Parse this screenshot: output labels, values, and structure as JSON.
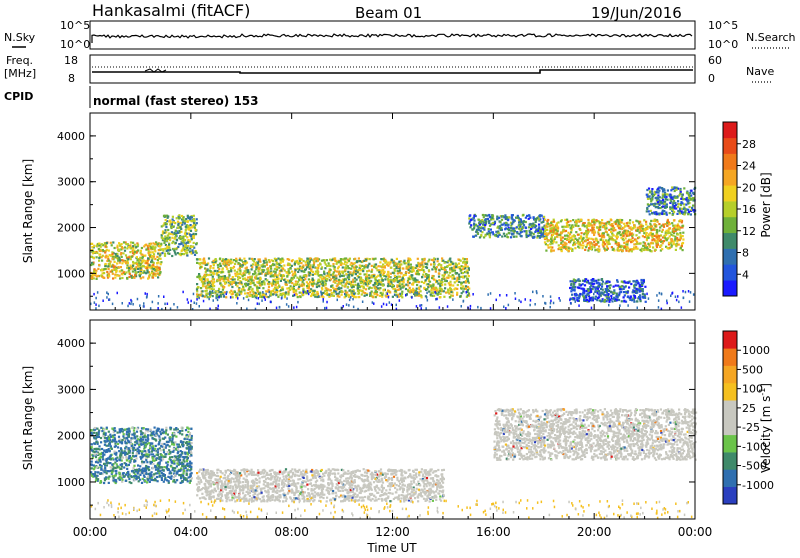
{
  "header": {
    "station": "Hankasalmi (fitACF)",
    "beam": "Beam 01",
    "date": "19/Jun/2016"
  },
  "noise_panel": {
    "left_label": "N.Sky",
    "right_label": "N.Search",
    "left_ticks": [
      "10^5",
      "10^0"
    ],
    "right_ticks": [
      "10^5",
      "10^0"
    ]
  },
  "freq_panel": {
    "left_label_1": "Freq.",
    "left_label_2": "[MHz]",
    "right_label": "Nave",
    "left_ticks": [
      "18",
      "8"
    ],
    "right_ticks": [
      "60",
      "0"
    ]
  },
  "cpid_panel": {
    "label": "CPID",
    "text": "normal (fast stereo) 153"
  },
  "chart_data": [
    {
      "type": "heatmap",
      "quantity": "Power",
      "ylabel": "Slant Range [km]",
      "ylim": [
        200,
        4500
      ],
      "yticks": [
        "1000",
        "2000",
        "3000",
        "4000"
      ],
      "xlim_hours": [
        0,
        24
      ],
      "colorbar": {
        "label": "Power [dB]",
        "ticks": [
          "4",
          "8",
          "12",
          "16",
          "20",
          "24",
          "28"
        ],
        "colors": [
          "#1a1aff",
          "#2255dd",
          "#2f6fb0",
          "#3f8a6a",
          "#6fb13a",
          "#b6cf2a",
          "#f0d020",
          "#f5a623",
          "#f07a1a",
          "#e94b18",
          "#dd1a1a"
        ]
      },
      "regions": [
        {
          "t0": 0.0,
          "t1": 2.8,
          "r0": 900,
          "r1": 1700,
          "level": 0.6
        },
        {
          "t0": 2.8,
          "t1": 4.2,
          "r0": 1400,
          "r1": 2300,
          "level": 0.45
        },
        {
          "t0": 4.2,
          "t1": 15.0,
          "r0": 500,
          "r1": 1350,
          "level": 0.55
        },
        {
          "t0": 15.0,
          "t1": 18.0,
          "r0": 1800,
          "r1": 2300,
          "level": 0.3
        },
        {
          "t0": 18.0,
          "t1": 23.5,
          "r0": 1500,
          "r1": 2200,
          "level": 0.65
        },
        {
          "t0": 22.0,
          "t1": 24.0,
          "r0": 2300,
          "r1": 2900,
          "level": 0.3
        },
        {
          "t0": 19.0,
          "t1": 22.0,
          "r0": 400,
          "r1": 900,
          "level": 0.2
        }
      ]
    },
    {
      "type": "heatmap",
      "quantity": "Velocity",
      "ylabel": "Slant Range [km]",
      "ylim": [
        200,
        4500
      ],
      "yticks": [
        "1000",
        "2000",
        "3000",
        "4000"
      ],
      "xlim_hours": [
        0,
        24
      ],
      "xticks": [
        "00:00",
        "04:00",
        "08:00",
        "12:00",
        "16:00",
        "20:00",
        "00:00"
      ],
      "xlabel": "Time UT",
      "colorbar": {
        "label": "Velocity [m s",
        "label_sup": "-1",
        "label_end": "]",
        "ticks": [
          "1000",
          "500",
          "100",
          "25",
          "-25",
          "-100",
          "-500",
          "-1000"
        ],
        "colors": [
          "#2a3fbf",
          "#2f6fb0",
          "#3f8a6a",
          "#6bc44a",
          "#c8c8c0",
          "#c8c8c0",
          "#f5c020",
          "#f5a623",
          "#f07a1a",
          "#dd1a1a"
        ]
      },
      "regions": [
        {
          "t0": 0.0,
          "t1": 4.0,
          "r0": 1000,
          "r1": 2200,
          "color": "#2f6fb0"
        },
        {
          "t0": 4.2,
          "t1": 14.0,
          "r0": 600,
          "r1": 1300,
          "color": "#c8c8c0"
        },
        {
          "t0": 16.0,
          "t1": 24.0,
          "r0": 1500,
          "r1": 2600,
          "color": "#c8c8c0"
        }
      ]
    }
  ]
}
